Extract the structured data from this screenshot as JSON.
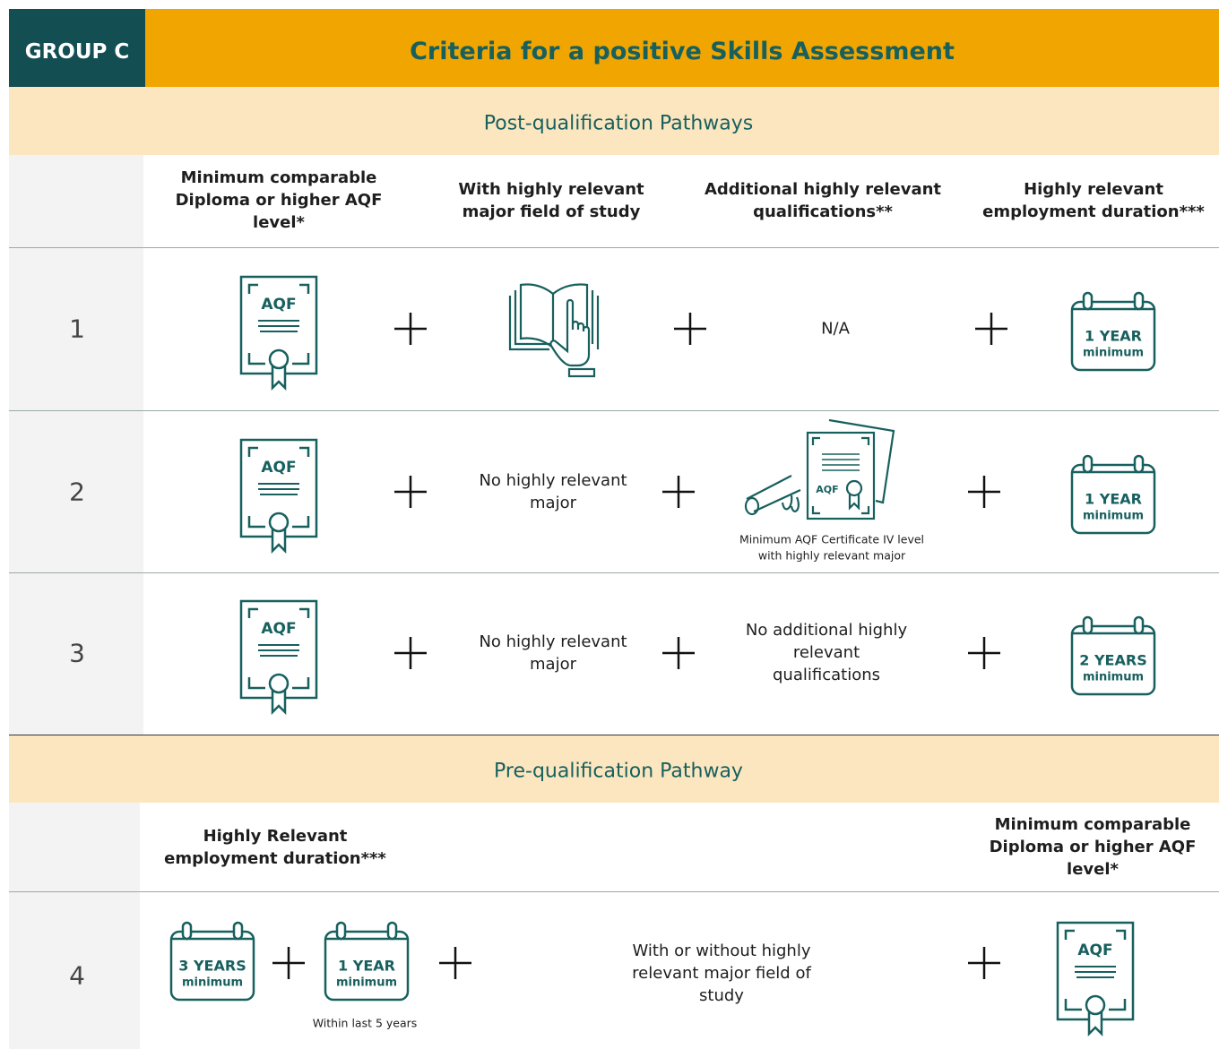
{
  "header": {
    "group": "GROUP C",
    "title": "Criteria for a positive Skills Assessment"
  },
  "post": {
    "title": "Post-qualification Pathways",
    "columns": [
      "Minimum comparable Diploma or higher AQF level*",
      "With highly relevant major field of study",
      "Additional highly relevant qualifications**",
      "Highly relevant employment duration***"
    ],
    "rows": [
      {
        "number": "1",
        "aqf": "AQF",
        "additional": {
          "text": "N/A"
        },
        "employment": {
          "duration": "1 YEAR",
          "note": "minimum"
        }
      },
      {
        "number": "2",
        "aqf": "AQF",
        "major": "No highly relevant major",
        "additional": {
          "icon_label": "AQF",
          "caption": "Minimum AQF Certificate IV level with highly relevant major"
        },
        "employment": {
          "duration": "1 YEAR",
          "note": "minimum"
        }
      },
      {
        "number": "3",
        "aqf": "AQF",
        "major": "No highly relevant major",
        "additional": {
          "text": "No additional highly relevant qualifications"
        },
        "employment": {
          "duration": "2 YEARS",
          "note": "minimum"
        }
      }
    ]
  },
  "pre": {
    "title": "Pre-qualification Pathway",
    "columns": [
      "Highly Relevant employment duration***",
      "Minimum comparable Diploma or higher AQF level*"
    ],
    "row": {
      "number": "4",
      "employment": [
        {
          "duration": "3 YEARS",
          "note": "minimum"
        },
        {
          "duration": "1 YEAR",
          "note": "minimum"
        }
      ],
      "employment_caption": "Within last 5 years",
      "major": "With or without highly relevant major field of study",
      "aqf": "AQF"
    }
  }
}
